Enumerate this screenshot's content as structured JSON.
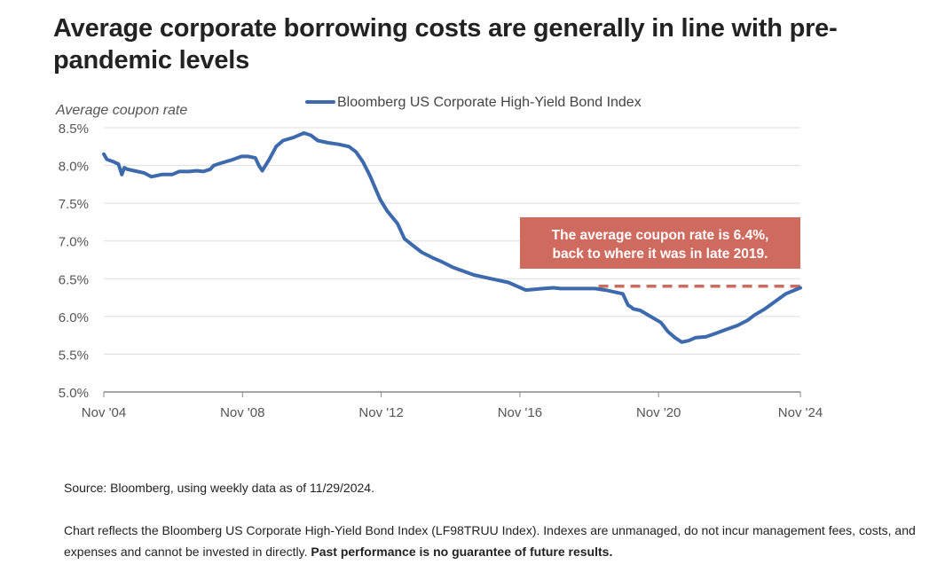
{
  "title": "Average corporate borrowing costs are generally in line with pre-pandemic levels",
  "source": "Source: Bloomberg, using weekly data as of 11/29/2024.",
  "note": {
    "text": "Chart reflects the Bloomberg US Corporate High-Yield Bond Index (LF98TRUU Index). Indexes are unmanaged, do not incur management fees, costs, and expenses and cannot be invested in directly. ",
    "bold": "Past performance is no guarantee of future results."
  },
  "colors": {
    "line": "#3d69ad",
    "annotation_bg": "#cf6a5f",
    "dashed": "#cf6a5f",
    "grid": "#dddddd",
    "axis": "#888888",
    "tick_text": "#555555"
  },
  "chart_data": {
    "type": "line",
    "title": "Average corporate borrowing costs are generally in line with pre-pandemic levels",
    "ylabel": "Average coupon rate",
    "xlabel": "",
    "legend": {
      "placement": "top-center",
      "entries": [
        "Bloomberg US Corporate High-Yield Bond Index"
      ]
    },
    "grid": true,
    "ylim": [
      5.0,
      8.5
    ],
    "xlim": [
      2004.83,
      2024.92
    ],
    "y_ticks": [
      {
        "value": 8.5,
        "label": "8.5%"
      },
      {
        "value": 8.0,
        "label": "8.0%"
      },
      {
        "value": 7.5,
        "label": "7.5%"
      },
      {
        "value": 7.0,
        "label": "7.0%"
      },
      {
        "value": 6.5,
        "label": "6.5%"
      },
      {
        "value": 6.0,
        "label": "6.0%"
      },
      {
        "value": 5.5,
        "label": "5.5%"
      },
      {
        "value": 5.0,
        "label": "5.0%"
      }
    ],
    "x_ticks": [
      {
        "value": 2004.83,
        "label": "Nov '04"
      },
      {
        "value": 2008.83,
        "label": "Nov '08"
      },
      {
        "value": 2012.83,
        "label": "Nov '12"
      },
      {
        "value": 2016.83,
        "label": "Nov '16"
      },
      {
        "value": 2020.83,
        "label": "Nov '20"
      },
      {
        "value": 2024.92,
        "label": "Nov '24"
      }
    ],
    "series": [
      {
        "name": "Bloomberg US Corporate High-Yield Bond Index",
        "x": [
          2004.83,
          2004.92,
          2005.1,
          2005.25,
          2005.35,
          2005.42,
          2005.5,
          2005.7,
          2006.0,
          2006.2,
          2006.5,
          2006.8,
          2007.0,
          2007.3,
          2007.5,
          2007.7,
          2007.9,
          2008.0,
          2008.2,
          2008.5,
          2008.8,
          2009.0,
          2009.2,
          2009.3,
          2009.4,
          2009.6,
          2009.8,
          2010.0,
          2010.3,
          2010.6,
          2010.8,
          2011.0,
          2011.3,
          2011.6,
          2011.9,
          2012.1,
          2012.3,
          2012.5,
          2012.8,
          2013.0,
          2013.3,
          2013.5,
          2013.8,
          2014.0,
          2014.3,
          2014.6,
          2014.9,
          2015.2,
          2015.5,
          2015.8,
          2016.0,
          2016.5,
          2017.0,
          2017.5,
          2017.8,
          2018.0,
          2018.5,
          2019.0,
          2019.3,
          2019.8,
          2019.95,
          2020.05,
          2020.1,
          2020.3,
          2020.6,
          2020.9,
          2021.1,
          2021.3,
          2021.5,
          2021.7,
          2021.9,
          2022.2,
          2022.5,
          2022.8,
          2023.1,
          2023.4,
          2023.6,
          2023.9,
          2024.2,
          2024.5,
          2024.92
        ],
        "values": [
          8.15,
          8.08,
          8.05,
          8.02,
          7.88,
          7.97,
          7.95,
          7.93,
          7.9,
          7.85,
          7.88,
          7.88,
          7.92,
          7.92,
          7.93,
          7.92,
          7.95,
          8.0,
          8.03,
          8.07,
          8.12,
          8.12,
          8.1,
          8.0,
          7.93,
          8.08,
          8.25,
          8.33,
          8.37,
          8.43,
          8.4,
          8.33,
          8.3,
          8.28,
          8.25,
          8.18,
          8.05,
          7.87,
          7.55,
          7.4,
          7.23,
          7.03,
          6.92,
          6.85,
          6.78,
          6.72,
          6.65,
          6.6,
          6.55,
          6.52,
          6.5,
          6.45,
          6.35,
          6.37,
          6.38,
          6.37,
          6.37,
          6.37,
          6.35,
          6.3,
          6.15,
          6.12,
          6.1,
          6.08,
          6.0,
          5.92,
          5.8,
          5.72,
          5.66,
          5.68,
          5.72,
          5.73,
          5.78,
          5.83,
          5.88,
          5.95,
          6.02,
          6.1,
          6.2,
          6.3,
          6.38
        ]
      }
    ],
    "reference_line": {
      "y": 6.4,
      "x_start": 2019.1,
      "x_end": 2024.92,
      "style": "dashed"
    },
    "annotation": {
      "lines": [
        "The average coupon rate is 6.4%,",
        "back to where it was in late 2019."
      ]
    }
  }
}
